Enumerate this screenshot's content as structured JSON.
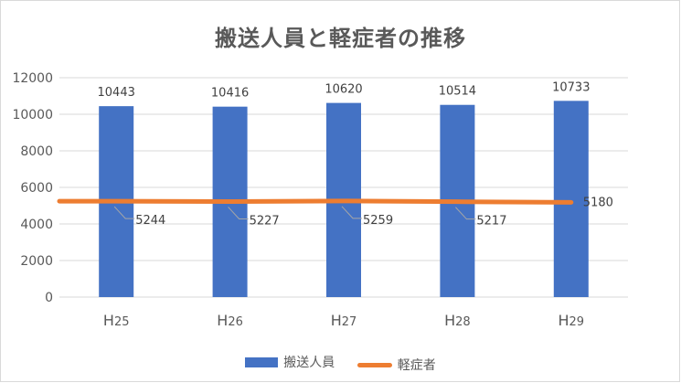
{
  "chart_data": {
    "type": "bar",
    "title": "搬送人員と軽症者の推移",
    "categories": [
      "H25",
      "H26",
      "H27",
      "H28",
      "H29"
    ],
    "category_labels": [
      {
        "prefix": "H",
        "num": "25"
      },
      {
        "prefix": "H",
        "num": "26"
      },
      {
        "prefix": "H",
        "num": "27"
      },
      {
        "prefix": "H",
        "num": "28"
      },
      {
        "prefix": "H",
        "num": "29"
      }
    ],
    "series": [
      {
        "name": "搬送人員",
        "type": "bar",
        "color": "#4472c4",
        "values": [
          10443,
          10416,
          10620,
          10514,
          10733
        ]
      },
      {
        "name": "軽症者",
        "type": "line",
        "color": "#ed7d31",
        "values": [
          5244,
          5227,
          5259,
          5217,
          5180
        ]
      }
    ],
    "ylim": [
      0,
      12000
    ],
    "yticks": [
      0,
      2000,
      4000,
      6000,
      8000,
      10000,
      12000
    ],
    "grid": true,
    "legend_position": "bottom"
  }
}
